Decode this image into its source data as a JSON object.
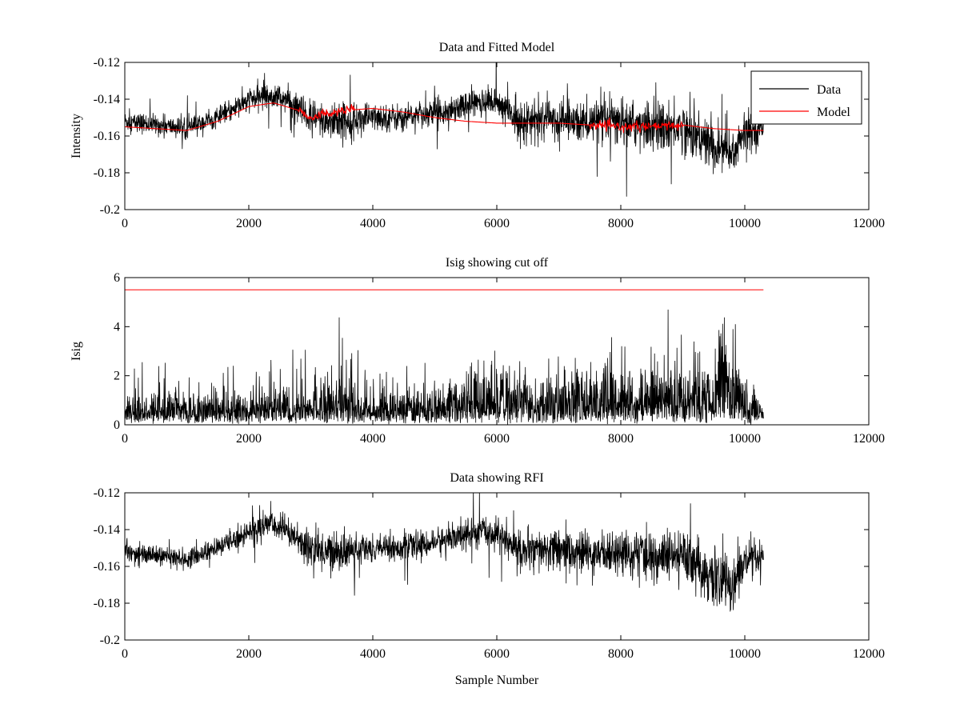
{
  "figure": {
    "background": "#ffffff"
  },
  "chart_data": [
    {
      "type": "line",
      "title": "Data and Fitted Model",
      "xlabel": "",
      "ylabel": "Intensity",
      "xlim": [
        0,
        12000
      ],
      "ylim": [
        -0.2,
        -0.12
      ],
      "xticks": [
        0,
        2000,
        4000,
        6000,
        8000,
        10000,
        12000
      ],
      "yticks": [
        -0.2,
        -0.18,
        -0.16,
        -0.14,
        -0.12
      ],
      "ytick_labels": [
        "-0.2",
        "-0.18",
        "-0.16",
        "-0.14",
        "-0.12"
      ],
      "legend": {
        "placement": "top-right",
        "entries": [
          "Data",
          "Model"
        ]
      },
      "series": [
        {
          "name": "Data",
          "color": "#000000",
          "style": "dense-noise",
          "x": [
            0,
            500,
            1000,
            1500,
            2000,
            2300,
            2600,
            3000,
            3400,
            4000,
            4500,
            5000,
            5500,
            5800,
            6000,
            6300,
            6500,
            7000,
            7500,
            8000,
            8500,
            9000,
            9500,
            9800,
            10000,
            10300
          ],
          "center": [
            -0.152,
            -0.154,
            -0.156,
            -0.15,
            -0.141,
            -0.137,
            -0.14,
            -0.151,
            -0.152,
            -0.15,
            -0.15,
            -0.147,
            -0.143,
            -0.141,
            -0.142,
            -0.15,
            -0.152,
            -0.151,
            -0.153,
            -0.152,
            -0.155,
            -0.155,
            -0.166,
            -0.17,
            -0.158,
            -0.156
          ],
          "spread": [
            0.006,
            0.006,
            0.006,
            0.006,
            0.007,
            0.008,
            0.008,
            0.012,
            0.012,
            0.008,
            0.008,
            0.008,
            0.009,
            0.009,
            0.009,
            0.012,
            0.012,
            0.012,
            0.012,
            0.014,
            0.015,
            0.015,
            0.016,
            0.016,
            0.012,
            0.008
          ]
        },
        {
          "name": "Model",
          "color": "#ff0000",
          "style": "smooth",
          "x": [
            0,
            500,
            1000,
            1500,
            2000,
            2400,
            2800,
            3000,
            3200,
            3600,
            4000,
            4500,
            5000,
            5500,
            6000,
            6500,
            7000,
            7500,
            8000,
            8500,
            9000,
            9500,
            10000,
            10300
          ],
          "values": [
            -0.155,
            -0.156,
            -0.157,
            -0.152,
            -0.144,
            -0.142,
            -0.146,
            -0.15,
            -0.148,
            -0.146,
            -0.145,
            -0.147,
            -0.15,
            -0.152,
            -0.153,
            -0.153,
            -0.153,
            -0.154,
            -0.155,
            -0.155,
            -0.154,
            -0.156,
            -0.157,
            -0.157
          ],
          "ripple_ranges": [
            [
              2800,
              3700
            ],
            [
              7500,
              9000
            ]
          ]
        }
      ]
    },
    {
      "type": "line",
      "title": "Isig showing cut off",
      "xlabel": "",
      "ylabel": "Isig",
      "xlim": [
        0,
        12000
      ],
      "ylim": [
        0,
        6
      ],
      "xticks": [
        0,
        2000,
        4000,
        6000,
        8000,
        10000,
        12000
      ],
      "yticks": [
        0,
        2,
        4,
        6
      ],
      "ytick_labels": [
        "0",
        "2",
        "4",
        "6"
      ],
      "series": [
        {
          "color": "#000000",
          "style": "dense-spikes",
          "x": [
            0,
            1000,
            2000,
            2800,
            3400,
            4000,
            5000,
            5500,
            6000,
            6500,
            7000,
            8000,
            8600,
            9000,
            9500,
            9800,
            10000,
            10300
          ],
          "base": [
            1.2,
            1.2,
            1.3,
            1.6,
            2.0,
            1.4,
            1.4,
            2.0,
            2.4,
            1.8,
            2.0,
            2.1,
            2.6,
            2.4,
            3.0,
            3.2,
            1.4,
            1.0
          ],
          "peaks": [
            2.8,
            2.6,
            2.6,
            3.2,
            4.6,
            2.5,
            2.8,
            3.3,
            3.0,
            3.4,
            3.5,
            3.7,
            5.1,
            5.1,
            5.1,
            5.0,
            2.0,
            1.4
          ]
        },
        {
          "color": "#ff0000",
          "style": "constant",
          "x": [
            0,
            10300
          ],
          "values": [
            5.5,
            5.5
          ]
        }
      ]
    },
    {
      "type": "line",
      "title": "Data showing RFI",
      "xlabel": "Sample Number",
      "ylabel": "",
      "xlim": [
        0,
        12000
      ],
      "ylim": [
        -0.2,
        -0.12
      ],
      "xticks": [
        0,
        2000,
        4000,
        6000,
        8000,
        10000,
        12000
      ],
      "yticks": [
        -0.2,
        -0.18,
        -0.16,
        -0.14,
        -0.12
      ],
      "ytick_labels": [
        "-0.2",
        "-0.18",
        "-0.16",
        "-0.14",
        "-0.12"
      ],
      "series": [
        {
          "color": "#000000",
          "style": "dense-noise",
          "x": [
            0,
            500,
            1000,
            1500,
            2000,
            2300,
            2600,
            3000,
            3400,
            4000,
            4500,
            5000,
            5500,
            5800,
            6000,
            6300,
            6500,
            7000,
            7500,
            8000,
            8500,
            9000,
            9500,
            9800,
            10000,
            10300
          ],
          "center": [
            -0.152,
            -0.154,
            -0.156,
            -0.15,
            -0.141,
            -0.137,
            -0.14,
            -0.151,
            -0.152,
            -0.15,
            -0.15,
            -0.147,
            -0.143,
            -0.141,
            -0.142,
            -0.15,
            -0.152,
            -0.151,
            -0.153,
            -0.152,
            -0.155,
            -0.155,
            -0.166,
            -0.17,
            -0.158,
            -0.156
          ],
          "spread": [
            0.006,
            0.006,
            0.006,
            0.006,
            0.007,
            0.008,
            0.008,
            0.012,
            0.012,
            0.008,
            0.008,
            0.008,
            0.009,
            0.009,
            0.009,
            0.012,
            0.012,
            0.012,
            0.012,
            0.014,
            0.015,
            0.015,
            0.016,
            0.016,
            0.012,
            0.008
          ]
        }
      ]
    }
  ]
}
